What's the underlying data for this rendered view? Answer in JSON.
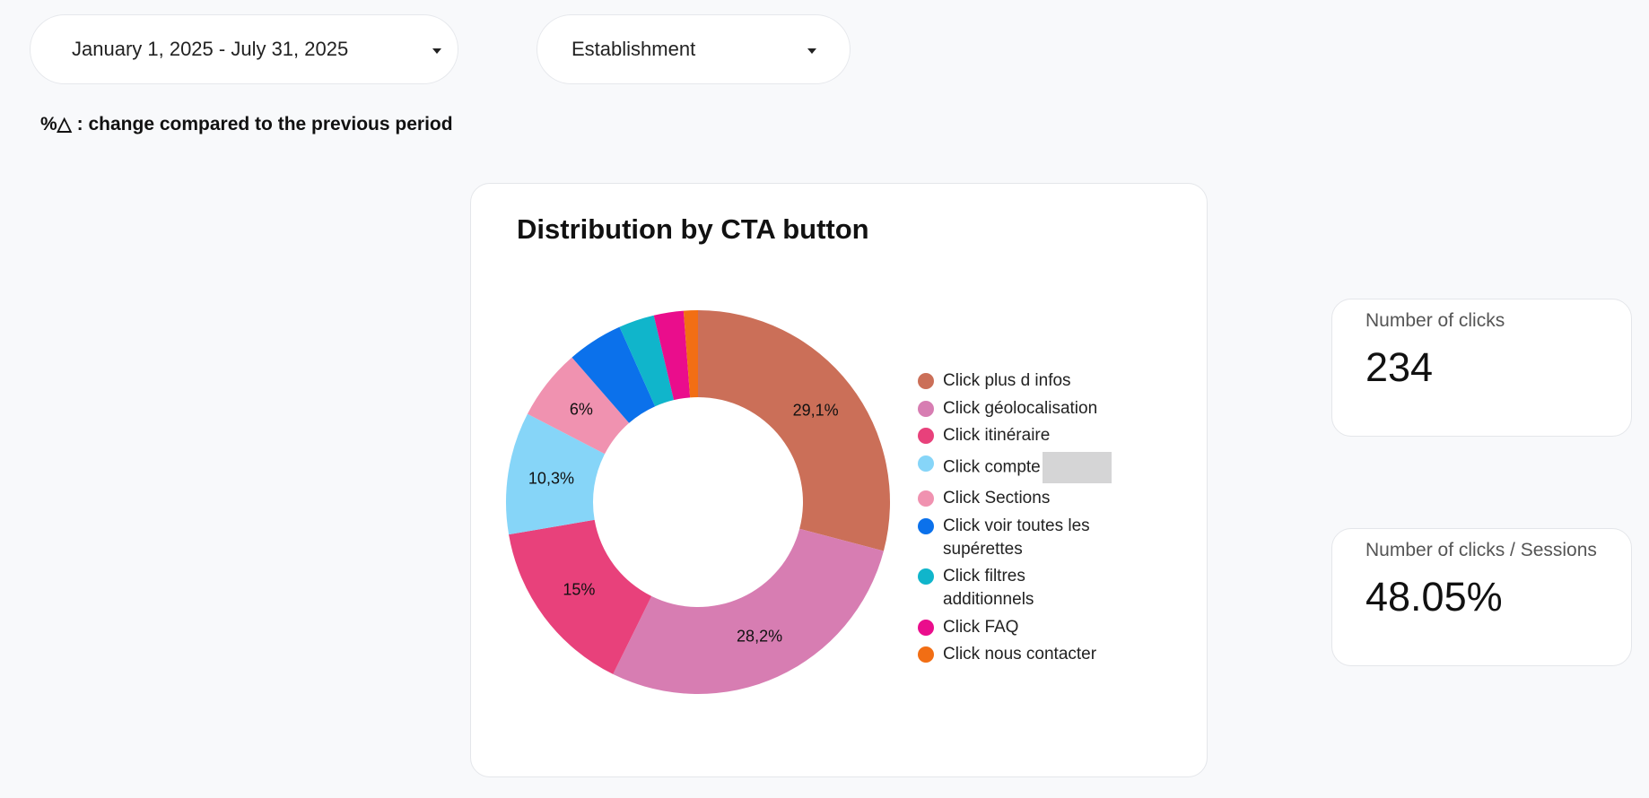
{
  "controls": {
    "date_range": "January 1, 2025 - July 31, 2025",
    "establishment": "Establishment"
  },
  "note": "%△ : change compared to the previous period",
  "chart_data": {
    "type": "pie",
    "title": "Distribution by CTA button",
    "donut": true,
    "categories": [
      "Click plus d infos",
      "Click géolocalisation",
      "Click itinéraire",
      "Click compte",
      "Click Sections",
      "Click voir toutes les supérettes",
      "Click filtres additionnels",
      "Click FAQ",
      "Click nous contacter"
    ],
    "values": [
      29.1,
      28.2,
      15,
      10.3,
      6,
      4.7,
      3.0,
      2.5,
      1.2
    ],
    "value_labels": [
      "29,1%",
      "28,2%",
      "15%",
      "10,3%",
      "6%",
      null,
      null,
      null,
      null
    ],
    "colors": [
      "#cb6f58",
      "#d77db2",
      "#e8417b",
      "#86d5f8",
      "#f092b0",
      "#0b71eb",
      "#10b5cb",
      "#ea0d8c",
      "#f26e14"
    ],
    "legend": "right"
  },
  "scorecards": [
    {
      "label": "Number of clicks",
      "value": "234"
    },
    {
      "label": "Number of clicks / Sessions",
      "value": "48.05%"
    }
  ]
}
